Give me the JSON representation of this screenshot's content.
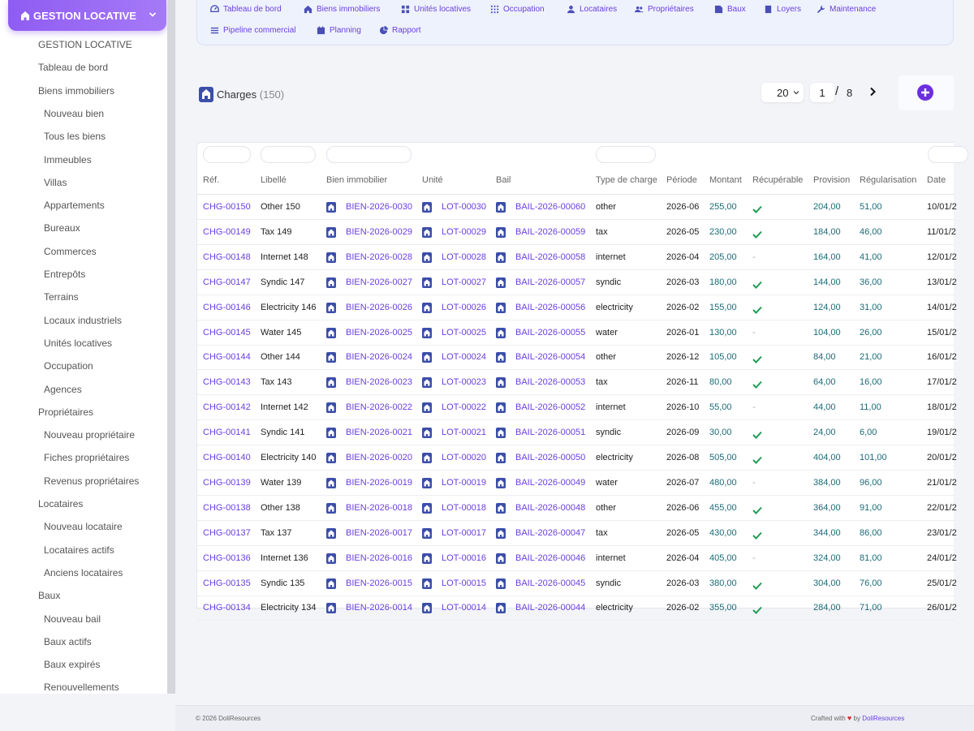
{
  "sidebar": {
    "module_label": "GESTION LOCATIVE",
    "items": [
      {
        "label": "GESTION LOCATIVE",
        "level": 1
      },
      {
        "label": "Tableau de bord",
        "level": 1
      },
      {
        "label": "Biens immobiliers",
        "level": 1
      },
      {
        "label": "Nouveau bien",
        "level": 2
      },
      {
        "label": "Tous les biens",
        "level": 2
      },
      {
        "label": "Immeubles",
        "level": 2
      },
      {
        "label": "Villas",
        "level": 2
      },
      {
        "label": "Appartements",
        "level": 2
      },
      {
        "label": "Bureaux",
        "level": 2
      },
      {
        "label": "Commerces",
        "level": 2
      },
      {
        "label": "Entrepôts",
        "level": 2
      },
      {
        "label": "Terrains",
        "level": 2
      },
      {
        "label": "Locaux industriels",
        "level": 2
      },
      {
        "label": "Unités locatives",
        "level": 2
      },
      {
        "label": "Occupation",
        "level": 2
      },
      {
        "label": "Agences",
        "level": 2
      },
      {
        "label": "Propriétaires",
        "level": 1
      },
      {
        "label": "Nouveau propriétaire",
        "level": 2
      },
      {
        "label": "Fiches propriétaires",
        "level": 2
      },
      {
        "label": "Revenus propriétaires",
        "level": 2
      },
      {
        "label": "Locataires",
        "level": 1
      },
      {
        "label": "Nouveau locataire",
        "level": 2
      },
      {
        "label": "Locataires actifs",
        "level": 2
      },
      {
        "label": "Anciens locataires",
        "level": 2
      },
      {
        "label": "Baux",
        "level": 1
      },
      {
        "label": "Nouveau bail",
        "level": 2
      },
      {
        "label": "Baux actifs",
        "level": 2
      },
      {
        "label": "Baux expirés",
        "level": 2
      },
      {
        "label": "Renouvellements",
        "level": 2
      }
    ]
  },
  "topnav": {
    "row1": [
      {
        "label": "Tableau de bord",
        "icon": "gauge-icon"
      },
      {
        "label": "Biens immobiliers",
        "icon": "home-icon"
      },
      {
        "label": "Unités locatives",
        "icon": "grid-icon"
      },
      {
        "label": "Occupation",
        "icon": "grid-dots-icon"
      },
      {
        "label": "Locataires",
        "icon": "user-icon"
      },
      {
        "label": "Propriétaires",
        "icon": "users-icon"
      },
      {
        "label": "Baux",
        "icon": "contract-icon"
      },
      {
        "label": "Loyers",
        "icon": "invoice-icon"
      },
      {
        "label": "Maintenance",
        "icon": "wrench-icon"
      }
    ],
    "row2": [
      {
        "label": "Pipeline commercial",
        "icon": "list-icon"
      },
      {
        "label": "Planning",
        "icon": "calendar-icon"
      },
      {
        "label": "Rapport",
        "icon": "pie-chart-icon"
      }
    ]
  },
  "list": {
    "title": "Charges",
    "count": "(150)",
    "limit": "20",
    "page": "1",
    "page_sep": "/",
    "total_pages": "8"
  },
  "table": {
    "headers": [
      "Réf.",
      "Libellé",
      "Bien immobilier",
      "Unité",
      "Bail",
      "Type de charge",
      "Période",
      "Montant",
      "Récupérable",
      "Provision",
      "Régularisation",
      "Date"
    ],
    "rows": [
      {
        "ref": "CHG-00150",
        "label": "Other 150",
        "bien": "BIEN-2026-0030",
        "unite": "LOT-00030",
        "bail": "BAIL-2026-00060",
        "type": "other",
        "periode": "2026-06",
        "montant": "255,00",
        "recup": true,
        "provision": "204,00",
        "regul": "51,00",
        "date": "10/01/2"
      },
      {
        "ref": "CHG-00149",
        "label": "Tax 149",
        "bien": "BIEN-2026-0029",
        "unite": "LOT-00029",
        "bail": "BAIL-2026-00059",
        "type": "tax",
        "periode": "2026-05",
        "montant": "230,00",
        "recup": true,
        "provision": "184,00",
        "regul": "46,00",
        "date": "11/01/2"
      },
      {
        "ref": "CHG-00148",
        "label": "Internet 148",
        "bien": "BIEN-2026-0028",
        "unite": "LOT-00028",
        "bail": "BAIL-2026-00058",
        "type": "internet",
        "periode": "2026-04",
        "montant": "205,00",
        "recup": false,
        "provision": "164,00",
        "regul": "41,00",
        "date": "12/01/2"
      },
      {
        "ref": "CHG-00147",
        "label": "Syndic 147",
        "bien": "BIEN-2026-0027",
        "unite": "LOT-00027",
        "bail": "BAIL-2026-00057",
        "type": "syndic",
        "periode": "2026-03",
        "montant": "180,00",
        "recup": true,
        "provision": "144,00",
        "regul": "36,00",
        "date": "13/01/2"
      },
      {
        "ref": "CHG-00146",
        "label": "Electricity 146",
        "bien": "BIEN-2026-0026",
        "unite": "LOT-00026",
        "bail": "BAIL-2026-00056",
        "type": "electricity",
        "periode": "2026-02",
        "montant": "155,00",
        "recup": true,
        "provision": "124,00",
        "regul": "31,00",
        "date": "14/01/2"
      },
      {
        "ref": "CHG-00145",
        "label": "Water 145",
        "bien": "BIEN-2026-0025",
        "unite": "LOT-00025",
        "bail": "BAIL-2026-00055",
        "type": "water",
        "periode": "2026-01",
        "montant": "130,00",
        "recup": false,
        "provision": "104,00",
        "regul": "26,00",
        "date": "15/01/2"
      },
      {
        "ref": "CHG-00144",
        "label": "Other 144",
        "bien": "BIEN-2026-0024",
        "unite": "LOT-00024",
        "bail": "BAIL-2026-00054",
        "type": "other",
        "periode": "2026-12",
        "montant": "105,00",
        "recup": true,
        "provision": "84,00",
        "regul": "21,00",
        "date": "16/01/2"
      },
      {
        "ref": "CHG-00143",
        "label": "Tax 143",
        "bien": "BIEN-2026-0023",
        "unite": "LOT-00023",
        "bail": "BAIL-2026-00053",
        "type": "tax",
        "periode": "2026-11",
        "montant": "80,00",
        "recup": true,
        "provision": "64,00",
        "regul": "16,00",
        "date": "17/01/2"
      },
      {
        "ref": "CHG-00142",
        "label": "Internet 142",
        "bien": "BIEN-2026-0022",
        "unite": "LOT-00022",
        "bail": "BAIL-2026-00052",
        "type": "internet",
        "periode": "2026-10",
        "montant": "55,00",
        "recup": false,
        "provision": "44,00",
        "regul": "11,00",
        "date": "18/01/2"
      },
      {
        "ref": "CHG-00141",
        "label": "Syndic 141",
        "bien": "BIEN-2026-0021",
        "unite": "LOT-00021",
        "bail": "BAIL-2026-00051",
        "type": "syndic",
        "periode": "2026-09",
        "montant": "30,00",
        "recup": true,
        "provision": "24,00",
        "regul": "6,00",
        "date": "19/01/2"
      },
      {
        "ref": "CHG-00140",
        "label": "Electricity 140",
        "bien": "BIEN-2026-0020",
        "unite": "LOT-00020",
        "bail": "BAIL-2026-00050",
        "type": "electricity",
        "periode": "2026-08",
        "montant": "505,00",
        "recup": true,
        "provision": "404,00",
        "regul": "101,00",
        "date": "20/01/2"
      },
      {
        "ref": "CHG-00139",
        "label": "Water 139",
        "bien": "BIEN-2026-0019",
        "unite": "LOT-00019",
        "bail": "BAIL-2026-00049",
        "type": "water",
        "periode": "2026-07",
        "montant": "480,00",
        "recup": false,
        "provision": "384,00",
        "regul": "96,00",
        "date": "21/01/2"
      },
      {
        "ref": "CHG-00138",
        "label": "Other 138",
        "bien": "BIEN-2026-0018",
        "unite": "LOT-00018",
        "bail": "BAIL-2026-00048",
        "type": "other",
        "periode": "2026-06",
        "montant": "455,00",
        "recup": true,
        "provision": "364,00",
        "regul": "91,00",
        "date": "22/01/2"
      },
      {
        "ref": "CHG-00137",
        "label": "Tax 137",
        "bien": "BIEN-2026-0017",
        "unite": "LOT-00017",
        "bail": "BAIL-2026-00047",
        "type": "tax",
        "periode": "2026-05",
        "montant": "430,00",
        "recup": true,
        "provision": "344,00",
        "regul": "86,00",
        "date": "23/01/2"
      },
      {
        "ref": "CHG-00136",
        "label": "Internet 136",
        "bien": "BIEN-2026-0016",
        "unite": "LOT-00016",
        "bail": "BAIL-2026-00046",
        "type": "internet",
        "periode": "2026-04",
        "montant": "405,00",
        "recup": false,
        "provision": "324,00",
        "regul": "81,00",
        "date": "24/01/2"
      },
      {
        "ref": "CHG-00135",
        "label": "Syndic 135",
        "bien": "BIEN-2026-0015",
        "unite": "LOT-00015",
        "bail": "BAIL-2026-00045",
        "type": "syndic",
        "periode": "2026-03",
        "montant": "380,00",
        "recup": true,
        "provision": "304,00",
        "regul": "76,00",
        "date": "25/01/2"
      },
      {
        "ref": "CHG-00134",
        "label": "Electricity 134",
        "bien": "BIEN-2026-0014",
        "unite": "LOT-00014",
        "bail": "BAIL-2026-00044",
        "type": "electricity",
        "periode": "2026-02",
        "montant": "355,00",
        "recup": true,
        "provision": "284,00",
        "regul": "71,00",
        "date": "26/01/2"
      }
    ]
  },
  "footer": {
    "copyright": "© 2026 DoliResources",
    "crafted_prefix": "Crafted with",
    "heart": "♥",
    "crafted_by": "by",
    "brand": "DoliResources"
  },
  "colors": {
    "accent": "#6a3fe0",
    "module_gradient_start": "#8f5cf2",
    "numeric": "#1b6a76",
    "check": "#1f9d55"
  }
}
